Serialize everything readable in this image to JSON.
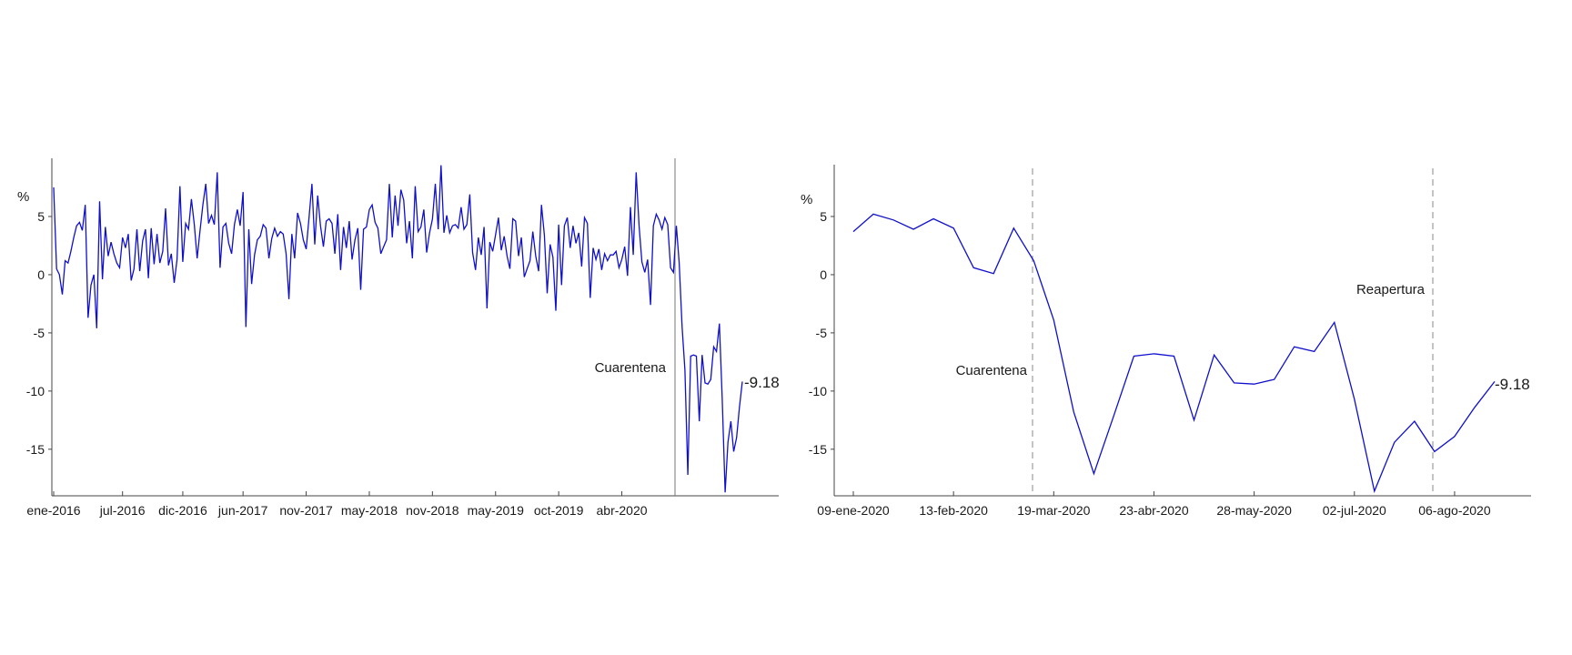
{
  "chart_data": [
    {
      "type": "line",
      "ylabel": "%",
      "ylim": [
        -19,
        10
      ],
      "yticks": [
        5,
        0,
        -5,
        -10,
        -15
      ],
      "xtick_labels": [
        "ene-2016",
        "jul-2016",
        "dic-2016",
        "jun-2017",
        "nov-2017",
        "may-2018",
        "nov-2018",
        "may-2019",
        "oct-2019",
        "abr-2020"
      ],
      "series_color": "#1010cc",
      "annotations": {
        "event_label": "Cuarentena",
        "last_value_label": "-9.18"
      },
      "grid": false,
      "values": [
        7.5,
        0.5,
        0,
        -1.7,
        1.2,
        1,
        2,
        3.2,
        4.2,
        4.5,
        3.8,
        6,
        -3.7,
        -0.9,
        0,
        -4.6,
        6.3,
        -0.4,
        4.1,
        1.6,
        2.8,
        1.8,
        1,
        0.6,
        3.2,
        2.3,
        3.5,
        -0.5,
        0.5,
        3.9,
        0.3,
        2.9,
        3.9,
        -0.3,
        4,
        0.9,
        3.5,
        1,
        2,
        5.7,
        0.8,
        1.8,
        -0.7,
        1.3,
        7.6,
        1.1,
        4.4,
        3.9,
        6.5,
        4.3,
        1.4,
        3.8,
        6,
        7.8,
        4.4,
        5.1,
        4.3,
        8.8,
        0.6,
        4.1,
        4.4,
        2.7,
        1.8,
        4.3,
        5.6,
        4.2,
        7.1,
        -4.5,
        3.9,
        -0.8,
        1.7,
        3,
        3.3,
        4.3,
        4,
        1.4,
        3.1,
        4,
        3.3,
        3.7,
        3.5,
        1.8,
        -2.1,
        3.5,
        1.4,
        5.3,
        4.4,
        3,
        2.2,
        4.9,
        7.8,
        2.6,
        6.8,
        4.2,
        2.4,
        4.6,
        4.8,
        4.4,
        1.8,
        5.2,
        0.4,
        4.1,
        2.3,
        4.6,
        1.3,
        3,
        4,
        -1.3,
        3.9,
        4.1,
        5.6,
        6,
        4.5,
        4,
        1.8,
        2.4,
        3,
        7.8,
        3.2,
        6.8,
        4.2,
        7.3,
        6.4,
        2.7,
        4.6,
        1.4,
        7.6,
        3.7,
        4.1,
        5.6,
        1.9,
        3.6,
        4.8,
        7.8,
        3.9,
        9.4,
        3.6,
        5.1,
        3.6,
        4.2,
        4.3,
        4,
        5.8,
        3.9,
        4.3,
        6.9,
        1.9,
        0.4,
        3.2,
        1.7,
        4.1,
        -2.9,
        2.8,
        2,
        3.4,
        4.9,
        2.1,
        3.3,
        1.6,
        0.5,
        4.8,
        4.6,
        1.6,
        3.2,
        -0.2,
        0.5,
        1.2,
        3.7,
        1.6,
        0.3,
        6,
        3.4,
        -1.6,
        2.6,
        1.5,
        -3.1,
        4.3,
        -0.9,
        4.2,
        4.9,
        2.3,
        4.2,
        2.7,
        3.6,
        0.7,
        4.9,
        4.4,
        -2,
        2.3,
        1.3,
        2.2,
        0.4,
        1.8,
        1.2,
        1.7,
        1.7,
        2,
        0.6,
        1.3,
        2.4,
        -0.1,
        5.8,
        1.7,
        8.8,
        4.2,
        1.1,
        0.2,
        1.3,
        -2.6,
        4.2,
        5.2,
        4.7,
        3.9,
        4.9,
        4.3,
        0.6,
        0.2,
        4.2,
        1,
        -4.5,
        -8.2,
        -17.2,
        -7,
        -6.9,
        -7,
        -12.6,
        -6.9,
        -9.3,
        -9.4,
        -9,
        -6.2,
        -6.6,
        -4.2,
        -10.7,
        -18.7,
        -14.4,
        -12.6,
        -15.2,
        -14,
        -11.4,
        -9.18
      ]
    },
    {
      "type": "line",
      "ylabel": "%",
      "ylim": [
        -19,
        10
      ],
      "yticks": [
        5,
        0,
        -5,
        -10,
        -15
      ],
      "xtick_labels": [
        "09-ene-2020",
        "13-feb-2020",
        "19-mar-2020",
        "23-abr-2020",
        "28-may-2020",
        "02-jul-2020",
        "06-ago-2020"
      ],
      "series_color": "#1010cc",
      "annotations": {
        "event_label_1": "Cuarentena",
        "event_label_2": "Reapertura",
        "last_value_label": "-9.18"
      },
      "grid": false,
      "values": [
        3.7,
        5.2,
        4.7,
        3.9,
        4.8,
        4,
        0.6,
        0.1,
        4,
        1.2,
        -3.9,
        -11.8,
        -17.1,
        -12.1,
        -7,
        -6.8,
        -7,
        -12.5,
        -6.9,
        -9.3,
        -9.4,
        -9,
        -6.2,
        -6.6,
        -4.1,
        -10.7,
        -18.6,
        -14.4,
        -12.6,
        -15.2,
        -13.9,
        -11.4,
        -9.18
      ]
    }
  ]
}
